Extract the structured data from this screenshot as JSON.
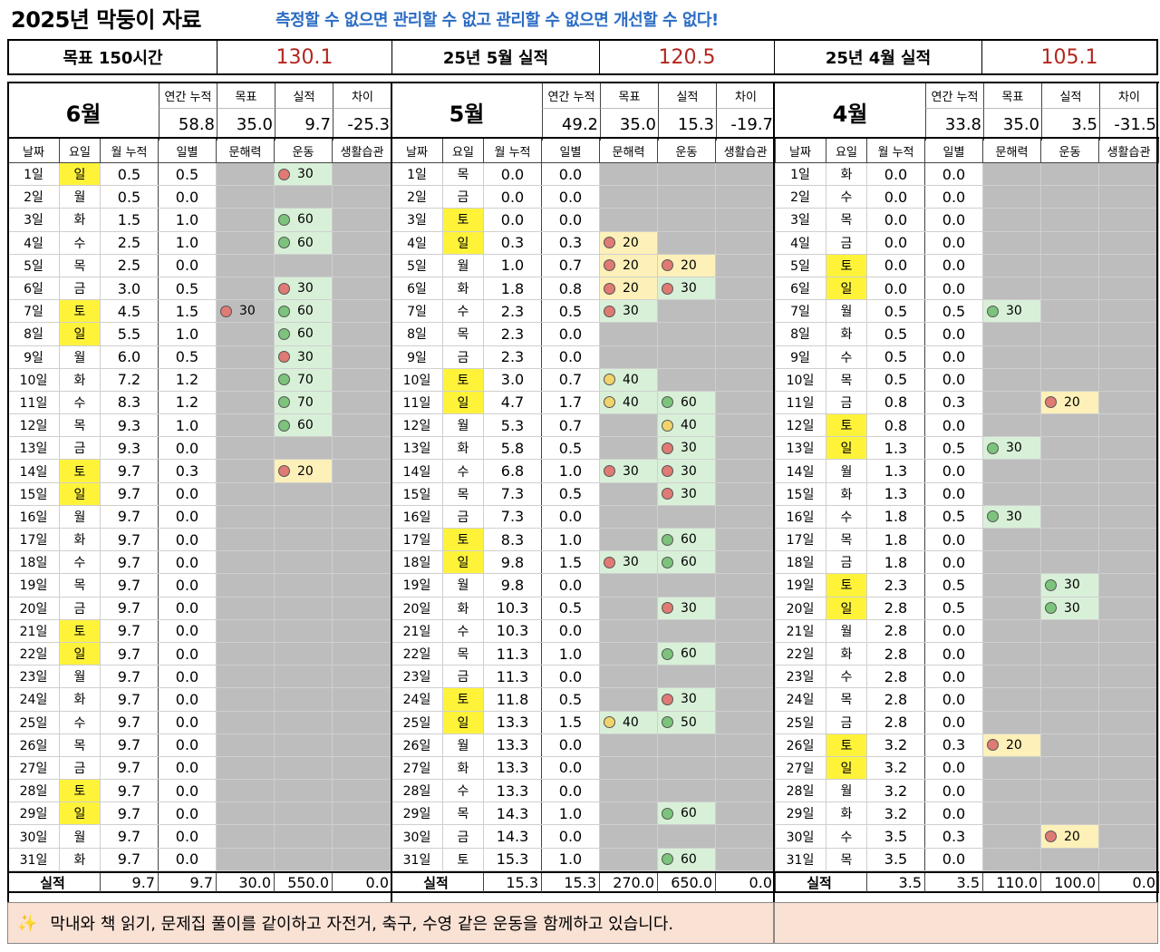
{
  "header": {
    "title": "2025년 막둥이 자료",
    "slogan": "측정할 수 없으면 관리할 수 없고 관리할 수 없으면 개선할 수 없다!"
  },
  "summary": {
    "goal_label": "목표 150시간",
    "goal_value": "130.1",
    "may_label": "25년 5월 실적",
    "may_value": "120.5",
    "apr_label": "25년 4월 실적",
    "apr_value": "105.1"
  },
  "colors": {
    "accent_red": "#b3261e",
    "slogan_blue": "#2b6cc4",
    "weekend_yellow": "#fff33a",
    "gray_cell": "#bdbdbd",
    "good_green": "#d8f0d8",
    "warn_yellow": "#fdf0b8",
    "note_bg": "#f9e1d4"
  },
  "stat_headers": [
    "연간 누적",
    "목표",
    "실적",
    "차이"
  ],
  "column_headers": [
    "날짜",
    "요일",
    "월 누적",
    "일별",
    "문해력",
    "운동",
    "생활습관"
  ],
  "total_label": "실적",
  "months": [
    {
      "name": "6월",
      "stats": [
        "58.8",
        "35.0",
        "9.7",
        "-25.3"
      ],
      "totals": [
        "9.7",
        "9.7",
        "30.0",
        "550.0",
        "0.0"
      ],
      "days": [
        [
          "1일",
          "일",
          "0.5",
          "0.5",
          null,
          {
            "v": "30",
            "dot": "red",
            "bg": "green"
          },
          null
        ],
        [
          "2일",
          "월",
          "0.5",
          "0.0",
          null,
          null,
          null
        ],
        [
          "3일",
          "화",
          "1.5",
          "1.0",
          null,
          {
            "v": "60",
            "dot": "green",
            "bg": "green"
          },
          null
        ],
        [
          "4일",
          "수",
          "2.5",
          "1.0",
          null,
          {
            "v": "60",
            "dot": "green",
            "bg": "green"
          },
          null
        ],
        [
          "5일",
          "목",
          "2.5",
          "0.0",
          null,
          null,
          null
        ],
        [
          "6일",
          "금",
          "3.0",
          "0.5",
          null,
          {
            "v": "30",
            "dot": "red",
            "bg": "green"
          },
          null
        ],
        [
          "7일",
          "토",
          "4.5",
          "1.5",
          {
            "v": "30",
            "dot": "red",
            "bg": "gray"
          },
          {
            "v": "60",
            "dot": "green",
            "bg": "green"
          },
          null
        ],
        [
          "8일",
          "일",
          "5.5",
          "1.0",
          null,
          {
            "v": "60",
            "dot": "green",
            "bg": "green"
          },
          null
        ],
        [
          "9일",
          "월",
          "6.0",
          "0.5",
          null,
          {
            "v": "30",
            "dot": "red",
            "bg": "green"
          },
          null
        ],
        [
          "10일",
          "화",
          "7.2",
          "1.2",
          null,
          {
            "v": "70",
            "dot": "green",
            "bg": "green"
          },
          null
        ],
        [
          "11일",
          "수",
          "8.3",
          "1.2",
          null,
          {
            "v": "70",
            "dot": "green",
            "bg": "green"
          },
          null
        ],
        [
          "12일",
          "목",
          "9.3",
          "1.0",
          null,
          {
            "v": "60",
            "dot": "green",
            "bg": "green"
          },
          null
        ],
        [
          "13일",
          "금",
          "9.3",
          "0.0",
          null,
          null,
          null
        ],
        [
          "14일",
          "토",
          "9.7",
          "0.3",
          null,
          {
            "v": "20",
            "dot": "red",
            "bg": "yellow"
          },
          null
        ],
        [
          "15일",
          "일",
          "9.7",
          "0.0",
          null,
          null,
          null
        ],
        [
          "16일",
          "월",
          "9.7",
          "0.0",
          null,
          null,
          null
        ],
        [
          "17일",
          "화",
          "9.7",
          "0.0",
          null,
          null,
          null
        ],
        [
          "18일",
          "수",
          "9.7",
          "0.0",
          null,
          null,
          null
        ],
        [
          "19일",
          "목",
          "9.7",
          "0.0",
          null,
          null,
          null
        ],
        [
          "20일",
          "금",
          "9.7",
          "0.0",
          null,
          null,
          null
        ],
        [
          "21일",
          "토",
          "9.7",
          "0.0",
          null,
          null,
          null
        ],
        [
          "22일",
          "일",
          "9.7",
          "0.0",
          null,
          null,
          null
        ],
        [
          "23일",
          "월",
          "9.7",
          "0.0",
          null,
          null,
          null
        ],
        [
          "24일",
          "화",
          "9.7",
          "0.0",
          null,
          null,
          null
        ],
        [
          "25일",
          "수",
          "9.7",
          "0.0",
          null,
          null,
          null
        ],
        [
          "26일",
          "목",
          "9.7",
          "0.0",
          null,
          null,
          null
        ],
        [
          "27일",
          "금",
          "9.7",
          "0.0",
          null,
          null,
          null
        ],
        [
          "28일",
          "토",
          "9.7",
          "0.0",
          null,
          null,
          null
        ],
        [
          "29일",
          "일",
          "9.7",
          "0.0",
          null,
          null,
          null
        ],
        [
          "30일",
          "월",
          "9.7",
          "0.0",
          null,
          null,
          null
        ],
        [
          "31일",
          "화",
          "9.7",
          "0.0",
          null,
          null,
          null
        ]
      ],
      "highlight_weekday": [
        1,
        7,
        8,
        14,
        15,
        21,
        22,
        28,
        29
      ]
    },
    {
      "name": "5월",
      "stats": [
        "49.2",
        "35.0",
        "15.3",
        "-19.7"
      ],
      "totals": [
        "15.3",
        "15.3",
        "270.0",
        "650.0",
        "0.0"
      ],
      "days": [
        [
          "1일",
          "목",
          "0.0",
          "0.0",
          null,
          null,
          null
        ],
        [
          "2일",
          "금",
          "0.0",
          "0.0",
          null,
          null,
          null
        ],
        [
          "3일",
          "토",
          "0.0",
          "0.0",
          null,
          null,
          null
        ],
        [
          "4일",
          "일",
          "0.3",
          "0.3",
          {
            "v": "20",
            "dot": "red",
            "bg": "yellow"
          },
          null,
          null
        ],
        [
          "5일",
          "월",
          "1.0",
          "0.7",
          {
            "v": "20",
            "dot": "red",
            "bg": "yellow"
          },
          {
            "v": "20",
            "dot": "red",
            "bg": "yellow"
          },
          null
        ],
        [
          "6일",
          "화",
          "1.8",
          "0.8",
          {
            "v": "20",
            "dot": "red",
            "bg": "yellow"
          },
          {
            "v": "30",
            "dot": "red",
            "bg": "green"
          },
          null
        ],
        [
          "7일",
          "수",
          "2.3",
          "0.5",
          {
            "v": "30",
            "dot": "red",
            "bg": "green"
          },
          null,
          null
        ],
        [
          "8일",
          "목",
          "2.3",
          "0.0",
          null,
          null,
          null
        ],
        [
          "9일",
          "금",
          "2.3",
          "0.0",
          null,
          null,
          null
        ],
        [
          "10일",
          "토",
          "3.0",
          "0.7",
          {
            "v": "40",
            "dot": "yellow",
            "bg": "green"
          },
          null,
          null
        ],
        [
          "11일",
          "일",
          "4.7",
          "1.7",
          {
            "v": "40",
            "dot": "yellow",
            "bg": "green"
          },
          {
            "v": "60",
            "dot": "green",
            "bg": "green"
          },
          null
        ],
        [
          "12일",
          "월",
          "5.3",
          "0.7",
          null,
          {
            "v": "40",
            "dot": "yellow",
            "bg": "green"
          },
          null
        ],
        [
          "13일",
          "화",
          "5.8",
          "0.5",
          null,
          {
            "v": "30",
            "dot": "red",
            "bg": "green"
          },
          null
        ],
        [
          "14일",
          "수",
          "6.8",
          "1.0",
          {
            "v": "30",
            "dot": "red",
            "bg": "green"
          },
          {
            "v": "30",
            "dot": "red",
            "bg": "green"
          },
          null
        ],
        [
          "15일",
          "목",
          "7.3",
          "0.5",
          null,
          {
            "v": "30",
            "dot": "red",
            "bg": "green"
          },
          null
        ],
        [
          "16일",
          "금",
          "7.3",
          "0.0",
          null,
          null,
          null
        ],
        [
          "17일",
          "토",
          "8.3",
          "1.0",
          null,
          {
            "v": "60",
            "dot": "green",
            "bg": "green"
          },
          null
        ],
        [
          "18일",
          "일",
          "9.8",
          "1.5",
          {
            "v": "30",
            "dot": "red",
            "bg": "green"
          },
          {
            "v": "60",
            "dot": "green",
            "bg": "green"
          },
          null
        ],
        [
          "19일",
          "월",
          "9.8",
          "0.0",
          null,
          null,
          null
        ],
        [
          "20일",
          "화",
          "10.3",
          "0.5",
          null,
          {
            "v": "30",
            "dot": "red",
            "bg": "green"
          },
          null
        ],
        [
          "21일",
          "수",
          "10.3",
          "0.0",
          null,
          null,
          null
        ],
        [
          "22일",
          "목",
          "11.3",
          "1.0",
          null,
          {
            "v": "60",
            "dot": "green",
            "bg": "green"
          },
          null
        ],
        [
          "23일",
          "금",
          "11.3",
          "0.0",
          null,
          null,
          null
        ],
        [
          "24일",
          "토",
          "11.8",
          "0.5",
          null,
          {
            "v": "30",
            "dot": "red",
            "bg": "green"
          },
          null
        ],
        [
          "25일",
          "일",
          "13.3",
          "1.5",
          {
            "v": "40",
            "dot": "yellow",
            "bg": "green"
          },
          {
            "v": "50",
            "dot": "green",
            "bg": "green"
          },
          null
        ],
        [
          "26일",
          "월",
          "13.3",
          "0.0",
          null,
          null,
          null
        ],
        [
          "27일",
          "화",
          "13.3",
          "0.0",
          null,
          null,
          null
        ],
        [
          "28일",
          "수",
          "13.3",
          "0.0",
          null,
          null,
          null
        ],
        [
          "29일",
          "목",
          "14.3",
          "1.0",
          null,
          {
            "v": "60",
            "dot": "green",
            "bg": "green"
          },
          null
        ],
        [
          "30일",
          "금",
          "14.3",
          "0.0",
          null,
          null,
          null
        ],
        [
          "31일",
          "토",
          "15.3",
          "1.0",
          null,
          {
            "v": "60",
            "dot": "green",
            "bg": "green"
          },
          null
        ]
      ],
      "highlight_weekday": [
        3,
        4,
        10,
        11,
        17,
        18,
        24,
        25
      ]
    },
    {
      "name": "4월",
      "stats": [
        "33.8",
        "35.0",
        "3.5",
        "-31.5"
      ],
      "totals": [
        "3.5",
        "3.5",
        "110.0",
        "100.0",
        "0.0"
      ],
      "days": [
        [
          "1일",
          "화",
          "0.0",
          "0.0",
          null,
          null,
          null
        ],
        [
          "2일",
          "수",
          "0.0",
          "0.0",
          null,
          null,
          null
        ],
        [
          "3일",
          "목",
          "0.0",
          "0.0",
          null,
          null,
          null
        ],
        [
          "4일",
          "금",
          "0.0",
          "0.0",
          null,
          null,
          null
        ],
        [
          "5일",
          "토",
          "0.0",
          "0.0",
          null,
          null,
          null
        ],
        [
          "6일",
          "일",
          "0.0",
          "0.0",
          null,
          null,
          null
        ],
        [
          "7일",
          "월",
          "0.5",
          "0.5",
          {
            "v": "30",
            "dot": "green",
            "bg": "green"
          },
          null,
          null
        ],
        [
          "8일",
          "화",
          "0.5",
          "0.0",
          null,
          null,
          null
        ],
        [
          "9일",
          "수",
          "0.5",
          "0.0",
          null,
          null,
          null
        ],
        [
          "10일",
          "목",
          "0.5",
          "0.0",
          null,
          null,
          null
        ],
        [
          "11일",
          "금",
          "0.8",
          "0.3",
          null,
          {
            "v": "20",
            "dot": "red",
            "bg": "yellow"
          },
          null
        ],
        [
          "12일",
          "토",
          "0.8",
          "0.0",
          null,
          null,
          null
        ],
        [
          "13일",
          "일",
          "1.3",
          "0.5",
          {
            "v": "30",
            "dot": "green",
            "bg": "green"
          },
          null,
          null
        ],
        [
          "14일",
          "월",
          "1.3",
          "0.0",
          null,
          null,
          null
        ],
        [
          "15일",
          "화",
          "1.3",
          "0.0",
          null,
          null,
          null
        ],
        [
          "16일",
          "수",
          "1.8",
          "0.5",
          {
            "v": "30",
            "dot": "green",
            "bg": "green"
          },
          null,
          null
        ],
        [
          "17일",
          "목",
          "1.8",
          "0.0",
          null,
          null,
          null
        ],
        [
          "18일",
          "금",
          "1.8",
          "0.0",
          null,
          null,
          null
        ],
        [
          "19일",
          "토",
          "2.3",
          "0.5",
          null,
          {
            "v": "30",
            "dot": "green",
            "bg": "green"
          },
          null
        ],
        [
          "20일",
          "일",
          "2.8",
          "0.5",
          null,
          {
            "v": "30",
            "dot": "green",
            "bg": "green"
          },
          null
        ],
        [
          "21일",
          "월",
          "2.8",
          "0.0",
          null,
          null,
          null
        ],
        [
          "22일",
          "화",
          "2.8",
          "0.0",
          null,
          null,
          null
        ],
        [
          "23일",
          "수",
          "2.8",
          "0.0",
          null,
          null,
          null
        ],
        [
          "24일",
          "목",
          "2.8",
          "0.0",
          null,
          null,
          null
        ],
        [
          "25일",
          "금",
          "2.8",
          "0.0",
          null,
          null,
          null
        ],
        [
          "26일",
          "토",
          "3.2",
          "0.3",
          {
            "v": "20",
            "dot": "red",
            "bg": "yellow"
          },
          null,
          null
        ],
        [
          "27일",
          "일",
          "3.2",
          "0.0",
          null,
          null,
          null
        ],
        [
          "28일",
          "월",
          "3.2",
          "0.0",
          null,
          null,
          null
        ],
        [
          "29일",
          "화",
          "3.2",
          "0.0",
          null,
          null,
          null
        ],
        [
          "30일",
          "수",
          "3.5",
          "0.3",
          null,
          {
            "v": "20",
            "dot": "red",
            "bg": "yellow"
          },
          null
        ],
        [
          "31일",
          "목",
          "3.5",
          "0.0",
          null,
          null,
          null
        ]
      ],
      "highlight_weekday": [
        5,
        6,
        12,
        13,
        19,
        20,
        26,
        27
      ]
    }
  ],
  "note": {
    "icon": "sparkle-icon",
    "text": "막내와 책 읽기, 문제집 풀이를 같이하고 자전거, 축구, 수영 같은 운동을 함께하고 있습니다."
  }
}
